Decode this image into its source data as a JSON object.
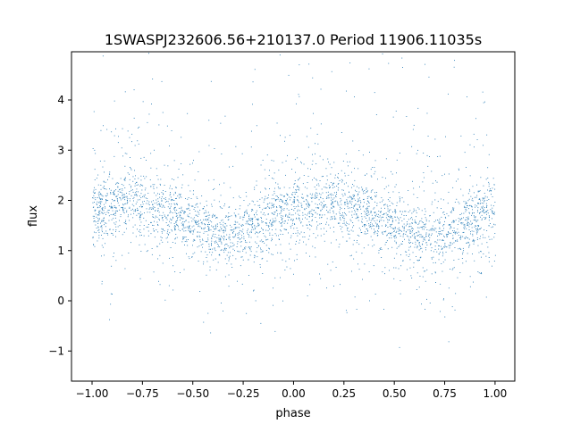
{
  "chart_data": {
    "type": "scatter",
    "title": "1SWASPJ232606.56+210137.0 Period 11906.11035s",
    "xlabel": "phase",
    "ylabel": "flux",
    "xlim": [
      -1.102,
      1.098
    ],
    "ylim": [
      -1.6,
      4.96
    ],
    "xticks": [
      "−1.00",
      "−0.75",
      "−0.50",
      "−0.25",
      "0.00",
      "0.25",
      "0.50",
      "0.75",
      "1.00"
    ],
    "xtick_values": [
      -1,
      -0.75,
      -0.5,
      -0.25,
      0,
      0.25,
      0.5,
      0.75,
      1
    ],
    "yticks": [
      "−1",
      "0",
      "1",
      "2",
      "3",
      "4"
    ],
    "ytick_values": [
      -1,
      0,
      1,
      2,
      3,
      4
    ],
    "grid": false,
    "marker_color": "#1f77b4",
    "binned_phase": [
      -1,
      -0.9,
      -0.8,
      -0.7,
      -0.6,
      -0.5,
      -0.4,
      -0.3,
      -0.2,
      -0.1,
      0,
      0.1,
      0.2,
      0.3,
      0.4,
      0.5,
      0.6,
      0.7,
      0.8,
      0.9,
      1
    ],
    "binned_median_flux": [
      1.8,
      1.95,
      2.0,
      1.9,
      1.7,
      1.55,
      1.35,
      1.35,
      1.5,
      1.65,
      1.8,
      1.95,
      2.0,
      1.9,
      1.7,
      1.5,
      1.35,
      1.3,
      1.45,
      1.65,
      1.8
    ]
  }
}
